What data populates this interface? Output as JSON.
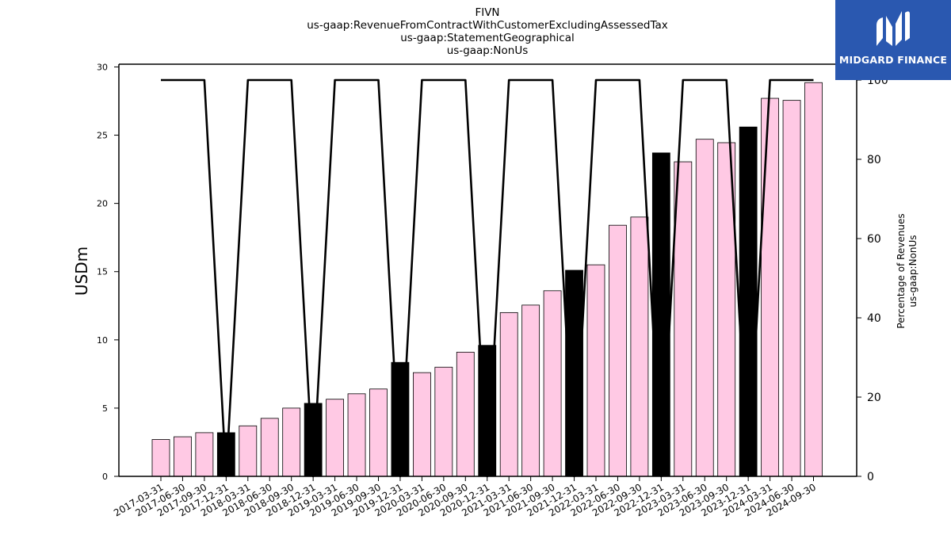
{
  "titles": [
    "FIVN",
    "us-gaap:RevenueFromContractWithCustomerExcludingAssessedTax",
    "us-gaap:StatementGeographical",
    "us-gaap:NonUs"
  ],
  "logo": {
    "text": "MIDGARD FINANCE",
    "color": "#2a58b0"
  },
  "colors": {
    "bar_quarter": "#ffc9e4",
    "bar_year_end": "#000000",
    "line": "#000000"
  },
  "chart_data": {
    "type": "bar",
    "title": "FIVN",
    "categories": [
      "2017-03-31",
      "2017-06-30",
      "2017-09-30",
      "2017-12-31",
      "2018-03-31",
      "2018-06-30",
      "2018-09-30",
      "2018-12-31",
      "2019-03-31",
      "2019-06-30",
      "2019-09-30",
      "2019-12-31",
      "2020-03-31",
      "2020-06-30",
      "2020-09-30",
      "2020-12-31",
      "2021-03-31",
      "2021-06-30",
      "2021-09-30",
      "2021-12-31",
      "2022-03-31",
      "2022-06-30",
      "2022-09-30",
      "2022-12-31",
      "2023-03-31",
      "2023-06-30",
      "2023-09-30",
      "2023-12-31",
      "2024-03-31",
      "2024-06-30",
      "2024-09-30"
    ],
    "series": [
      {
        "axis": "left",
        "values": [
          2.7,
          2.9,
          3.2,
          3.2,
          3.7,
          4.25,
          5.0,
          5.35,
          5.65,
          6.05,
          6.4,
          8.35,
          7.6,
          8.0,
          9.1,
          9.6,
          12.0,
          12.55,
          13.6,
          15.1,
          15.5,
          18.4,
          19.0,
          23.7,
          23.05,
          24.7,
          24.45,
          25.6,
          27.7,
          27.55,
          28.85
        ],
        "year_end": [
          false,
          false,
          false,
          true,
          false,
          false,
          false,
          true,
          false,
          false,
          false,
          true,
          false,
          false,
          false,
          true,
          false,
          false,
          false,
          true,
          false,
          false,
          false,
          true,
          false,
          false,
          false,
          true,
          false,
          false,
          false
        ]
      },
      {
        "type": "line",
        "axis": "right",
        "values": [
          100,
          100,
          100,
          0,
          100,
          100,
          100,
          0,
          100,
          100,
          100,
          0,
          100,
          100,
          100,
          0,
          100,
          100,
          100,
          0,
          100,
          100,
          100,
          0,
          100,
          100,
          100,
          0,
          100,
          100,
          100
        ]
      }
    ],
    "ylabel": "USDm",
    "ylim": [
      0,
      30.2
    ],
    "yticks": [
      0,
      5,
      10,
      15,
      20,
      25,
      30
    ],
    "y2label": [
      "Percentage of Revenues",
      "us-gaap:NonUs"
    ],
    "y2lim": [
      0,
      104
    ],
    "y2ticks": [
      0,
      20,
      40,
      60,
      80,
      100
    ],
    "grid": false
  }
}
